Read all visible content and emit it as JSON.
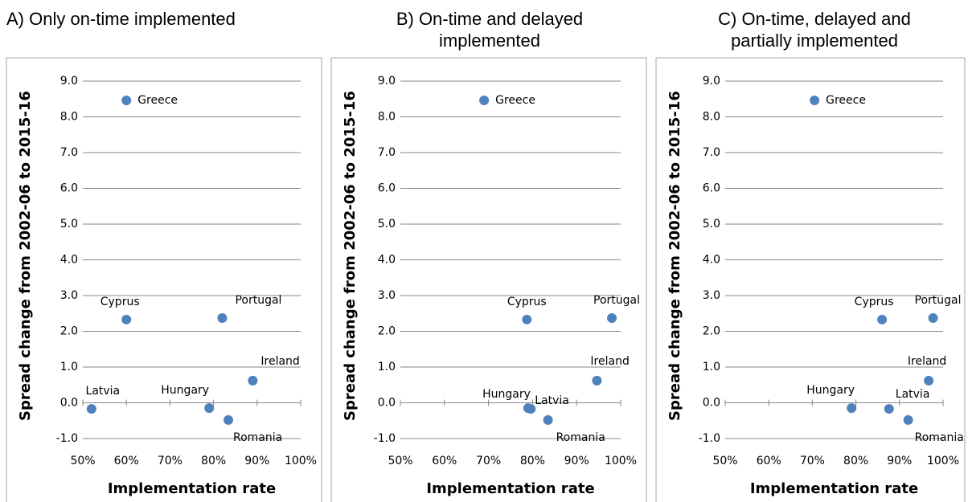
{
  "chart_data": [
    {
      "type": "scatter",
      "title": "A) Only on-time implemented",
      "x_label": "Implementation rate",
      "y_label": "Spread change from 2002-06 to 2015-16",
      "color": "#4f81bd",
      "labels": [
        "Greece",
        "Cyprus",
        "Portugal",
        "Ireland",
        "Latvia",
        "Hungary",
        "Romania"
      ],
      "x": [
        60,
        60,
        82,
        89,
        52,
        79,
        83.4
      ],
      "values": [
        8.46,
        2.33,
        2.37,
        0.62,
        -0.17,
        -0.15,
        -0.48
      ],
      "xlim": [
        50,
        100
      ],
      "xticks": [
        {
          "value": 50,
          "label": "50%"
        },
        {
          "value": 60,
          "label": "60%"
        },
        {
          "value": 70,
          "label": "70%"
        },
        {
          "value": 80,
          "label": "80%"
        },
        {
          "value": 90,
          "label": "90%"
        },
        {
          "value": 100,
          "label": "100%"
        }
      ],
      "ylim": [
        -1,
        9
      ],
      "yticks": [
        {
          "value": -1,
          "label": "-1.0"
        },
        {
          "value": 0,
          "label": "0.0"
        },
        {
          "value": 1,
          "label": "1.0"
        },
        {
          "value": 2,
          "label": "2.0"
        },
        {
          "value": 3,
          "label": "3.0"
        },
        {
          "value": 4,
          "label": "4.0"
        },
        {
          "value": 5,
          "label": "5.0"
        },
        {
          "value": 6,
          "label": "6.0"
        },
        {
          "value": 7,
          "label": "7.0"
        },
        {
          "value": 8,
          "label": "8.0"
        },
        {
          "value": 9,
          "label": "9.0"
        }
      ],
      "grid": true
    },
    {
      "type": "scatter",
      "title": "B) On-time and delayed implemented",
      "x_label": "Implementation rate",
      "y_label": "Spread change from 2002-06 to 2015-16",
      "color": "#4f81bd",
      "labels": [
        "Greece",
        "Cyprus",
        "Portugal",
        "Ireland",
        "Hungary",
        "Latvia",
        "Romania"
      ],
      "x": [
        69,
        78.7,
        98,
        94.6,
        79,
        79.6,
        83.5
      ],
      "values": [
        8.46,
        2.33,
        2.37,
        0.62,
        -0.15,
        -0.17,
        -0.48
      ],
      "xlim": [
        50,
        100
      ],
      "xticks": [
        {
          "value": 50,
          "label": "50%"
        },
        {
          "value": 60,
          "label": "60%"
        },
        {
          "value": 70,
          "label": "70%"
        },
        {
          "value": 80,
          "label": "80%"
        },
        {
          "value": 90,
          "label": "90%"
        },
        {
          "value": 100,
          "label": "100%"
        }
      ],
      "ylim": [
        -1,
        9
      ],
      "yticks": [
        {
          "value": -1,
          "label": "-1.0"
        },
        {
          "value": 0,
          "label": "0.0"
        },
        {
          "value": 1,
          "label": "1.0"
        },
        {
          "value": 2,
          "label": "2.0"
        },
        {
          "value": 3,
          "label": "3.0"
        },
        {
          "value": 4,
          "label": "4.0"
        },
        {
          "value": 5,
          "label": "5.0"
        },
        {
          "value": 6,
          "label": "6.0"
        },
        {
          "value": 7,
          "label": "7.0"
        },
        {
          "value": 8,
          "label": "8.0"
        },
        {
          "value": 9,
          "label": "9.0"
        }
      ],
      "grid": true
    },
    {
      "type": "scatter",
      "title": "C) On-time, delayed and partially implemented",
      "x_label": "Implementation rate",
      "y_label": "Spread change from 2002-06 to 2015-16",
      "color": "#4f81bd",
      "labels": [
        "Greece",
        "Cyprus",
        "Portugal",
        "Ireland",
        "Hungary",
        "Latvia",
        "Romania"
      ],
      "x": [
        70.5,
        86,
        97.7,
        96.7,
        79,
        87.6,
        92
      ],
      "values": [
        8.46,
        2.33,
        2.37,
        0.62,
        -0.15,
        -0.17,
        -0.48
      ],
      "xlim": [
        50,
        100
      ],
      "xticks": [
        {
          "value": 50,
          "label": "50%"
        },
        {
          "value": 60,
          "label": "60%"
        },
        {
          "value": 70,
          "label": "70%"
        },
        {
          "value": 80,
          "label": "80%"
        },
        {
          "value": 90,
          "label": "90%"
        },
        {
          "value": 100,
          "label": "100%"
        }
      ],
      "ylim": [
        -1,
        9
      ],
      "yticks": [
        {
          "value": -1,
          "label": "-1.0"
        },
        {
          "value": 0,
          "label": "0.0"
        },
        {
          "value": 1,
          "label": "1.0"
        },
        {
          "value": 2,
          "label": "2.0"
        },
        {
          "value": 3,
          "label": "3.0"
        },
        {
          "value": 4,
          "label": "4.0"
        },
        {
          "value": 5,
          "label": "5.0"
        },
        {
          "value": 6,
          "label": "6.0"
        },
        {
          "value": 7,
          "label": "7.0"
        },
        {
          "value": 8,
          "label": "8.0"
        },
        {
          "value": 9,
          "label": "9.0"
        }
      ],
      "grid": true
    }
  ]
}
